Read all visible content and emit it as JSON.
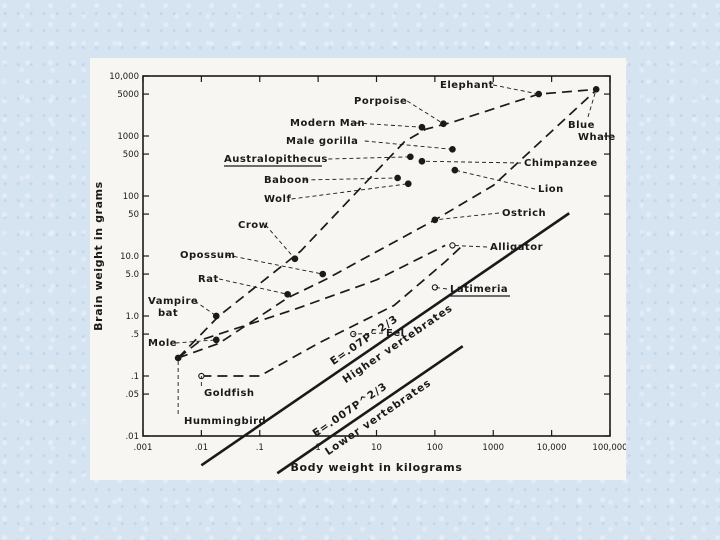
{
  "chart_data": {
    "type": "scatter",
    "xlabel": "Body weight in kilograms",
    "ylabel": "Brain weight in grams",
    "xscale": "log",
    "yscale": "log",
    "xlim": [
      0.001,
      100000
    ],
    "ylim": [
      0.01,
      10000
    ],
    "x_ticks": [
      {
        "v": 0.001,
        "t": ".001"
      },
      {
        "v": 0.01,
        "t": ".01"
      },
      {
        "v": 0.1,
        "t": ".1"
      },
      {
        "v": 1,
        "t": "1"
      },
      {
        "v": 10,
        "t": "10"
      },
      {
        "v": 100,
        "t": "100"
      },
      {
        "v": 1000,
        "t": "1000"
      },
      {
        "v": 10000,
        "t": "10,000"
      },
      {
        "v": 100000,
        "t": "100,000"
      }
    ],
    "y_ticks": [
      {
        "v": 0.01,
        "t": ".01"
      },
      {
        "v": 0.05,
        "t": ".05"
      },
      {
        "v": 0.1,
        "t": ".1"
      },
      {
        "v": 0.5,
        "t": ".5"
      },
      {
        "v": 1,
        "t": "1.0"
      },
      {
        "v": 5,
        "t": "5.0"
      },
      {
        "v": 10,
        "t": "10.0"
      },
      {
        "v": 50,
        "t": "50"
      },
      {
        "v": 100,
        "t": "100"
      },
      {
        "v": 500,
        "t": "500"
      },
      {
        "v": 1000,
        "t": "1000"
      },
      {
        "v": 5000,
        "t": "5000"
      },
      {
        "v": 10000,
        "t": "10,000"
      }
    ],
    "points": [
      {
        "name": "Elephant",
        "x": 6000,
        "y": 5000,
        "filled": true
      },
      {
        "name": "Blue Whale",
        "x": 58000,
        "y": 6000,
        "filled": true
      },
      {
        "name": "Porpoise",
        "x": 140,
        "y": 1600,
        "filled": true
      },
      {
        "name": "Modern Man",
        "x": 60,
        "y": 1400,
        "filled": true
      },
      {
        "name": "Male gorilla",
        "x": 200,
        "y": 600,
        "filled": true
      },
      {
        "name": "Australopithecus",
        "x": 38,
        "y": 450,
        "filled": true
      },
      {
        "name": "Chimpanzee",
        "x": 60,
        "y": 380,
        "filled": true
      },
      {
        "name": "Lion",
        "x": 220,
        "y": 270,
        "filled": true
      },
      {
        "name": "Baboon",
        "x": 23,
        "y": 200,
        "filled": true
      },
      {
        "name": "Wolf",
        "x": 35,
        "y": 160,
        "filled": true
      },
      {
        "name": "Ostrich",
        "x": 100,
        "y": 40,
        "filled": true
      },
      {
        "name": "Crow",
        "x": 0.4,
        "y": 9,
        "filled": true
      },
      {
        "name": "Opossum",
        "x": 1.2,
        "y": 5,
        "filled": true
      },
      {
        "name": "Rat",
        "x": 0.3,
        "y": 2.3,
        "filled": true
      },
      {
        "name": "Vampire bat",
        "x": 0.018,
        "y": 1.0,
        "filled": true
      },
      {
        "name": "Mole",
        "x": 0.018,
        "y": 0.4,
        "filled": true
      },
      {
        "name": "Alligator",
        "x": 200,
        "y": 15,
        "filled": false
      },
      {
        "name": "Latimeria",
        "x": 100,
        "y": 3,
        "filled": false
      },
      {
        "name": "Eel",
        "x": 4,
        "y": 0.5,
        "filled": false
      },
      {
        "name": "Goldfish",
        "x": 0.01,
        "y": 0.1,
        "filled": false
      },
      {
        "name": "Hummingbird",
        "x": 0.004,
        "y": 0.2,
        "filled": true
      }
    ],
    "regressions": [
      {
        "name": "Higher vertebrates",
        "equation": "E=.07P^2/3",
        "coef": 0.07,
        "exp": 0.6667,
        "xrange": [
          0.01,
          20000
        ]
      },
      {
        "name": "Lower vertebrates",
        "equation": "E=.007P^2/3",
        "coef": 0.007,
        "exp": 0.6667,
        "xrange": [
          0.2,
          300
        ]
      }
    ],
    "hulls": [
      {
        "name": "higher-upper-boundary",
        "points": [
          [
            0.004,
            0.2
          ],
          [
            0.02,
            1.0
          ],
          [
            0.5,
            12
          ],
          [
            30,
            800
          ],
          [
            70,
            1300
          ],
          [
            200,
            1700
          ],
          [
            6000,
            5000
          ],
          [
            60000,
            6000
          ]
        ]
      },
      {
        "name": "higher-lower-boundary",
        "points": [
          [
            0.004,
            0.2
          ],
          [
            0.02,
            0.35
          ],
          [
            0.3,
            2
          ],
          [
            1.3,
            4
          ],
          [
            100,
            40
          ],
          [
            1000,
            150
          ],
          [
            60000,
            6000
          ]
        ]
      },
      {
        "name": "lower-upper-boundary",
        "points": [
          [
            0.004,
            0.2
          ],
          [
            0.01,
            0.4
          ],
          [
            0.4,
            1.3
          ],
          [
            10,
            4
          ],
          [
            150,
            15
          ]
        ]
      },
      {
        "name": "lower-lower-boundary",
        "points": [
          [
            0.01,
            0.1
          ],
          [
            0.1,
            0.1
          ],
          [
            1,
            0.35
          ],
          [
            20,
            1.5
          ],
          [
            150,
            8
          ],
          [
            300,
            15
          ]
        ]
      }
    ]
  }
}
